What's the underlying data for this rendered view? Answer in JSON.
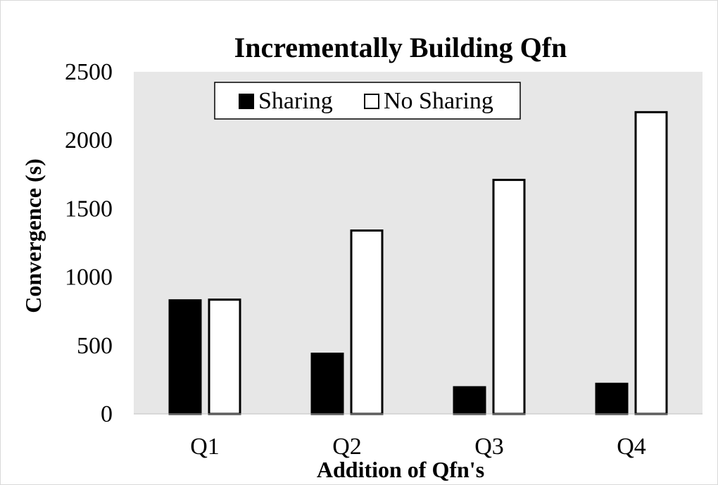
{
  "chart_data": {
    "type": "bar",
    "title": "Incrementally Building Qfn",
    "xlabel": "Addition of Qfn's",
    "ylabel": "Convergence (s)",
    "categories": [
      "Q1",
      "Q2",
      "Q3",
      "Q4"
    ],
    "series": [
      {
        "name": "Sharing",
        "values": [
          830,
          440,
          195,
          220
        ],
        "fill": "#000000",
        "stroke": "#000000"
      },
      {
        "name": "No Sharing",
        "values": [
          835,
          1340,
          1710,
          2205
        ],
        "fill": "#ffffff",
        "stroke": "#000000"
      }
    ],
    "ylim": [
      0,
      2500
    ],
    "yticks": [
      0,
      500,
      1000,
      1500,
      2000,
      2500
    ],
    "grid": false,
    "plot_background": "#e7e7e7",
    "legend_position": "top-center"
  }
}
